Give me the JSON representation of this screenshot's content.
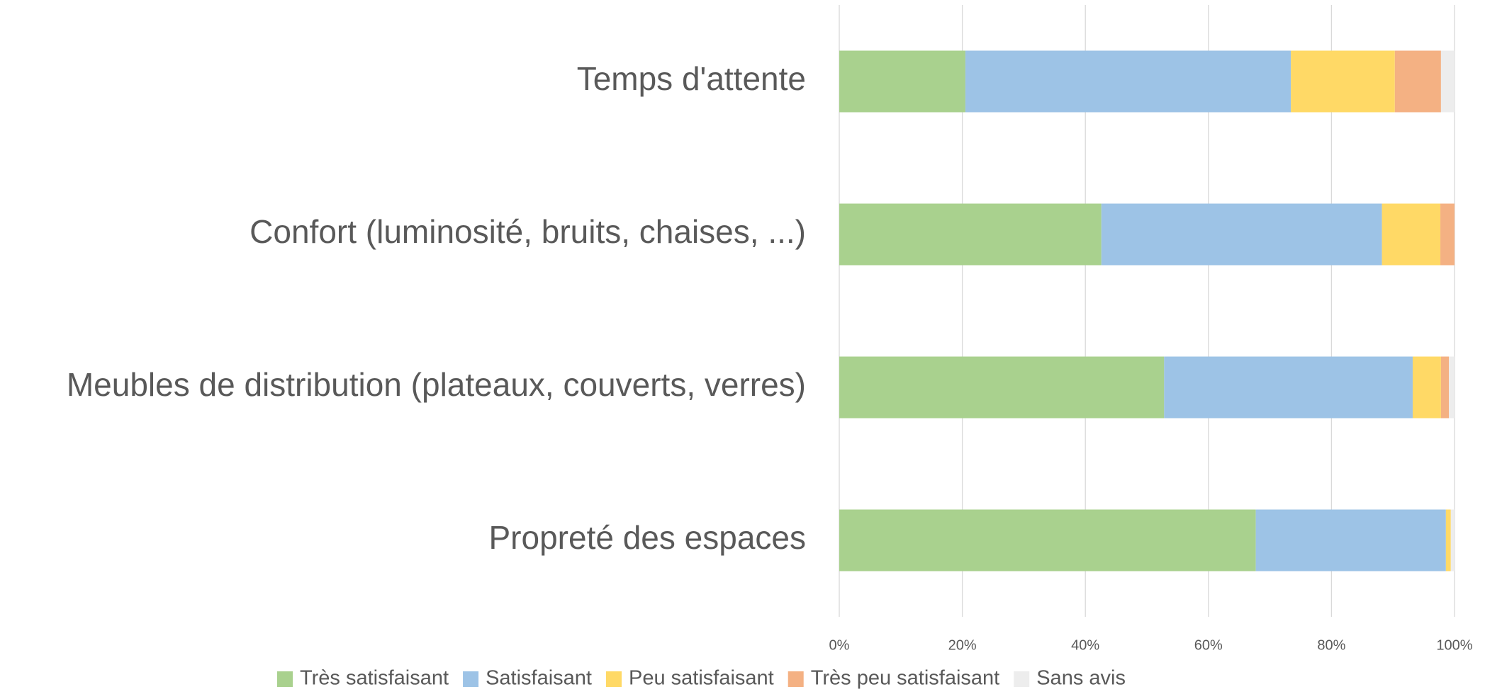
{
  "chart_data": {
    "type": "stacked_barh",
    "categories": [
      "Temps d'attente",
      "Confort (luminosité, bruits, chaises, ...)",
      "Meubles de distribution (plateaux, couverts, verres)",
      "Propreté des espaces"
    ],
    "series": [
      {
        "name": "Très satisfaisant",
        "color": "#a9d18e",
        "values": [
          20.5,
          42.6,
          52.8,
          67.7
        ]
      },
      {
        "name": "Satisfaisant",
        "color": "#9dc3e6",
        "values": [
          52.9,
          45.6,
          40.4,
          30.9
        ]
      },
      {
        "name": "Peu satisfaisant",
        "color": "#ffd966",
        "values": [
          16.9,
          9.5,
          4.6,
          0.8
        ]
      },
      {
        "name": "Très peu satisfaisant",
        "color": "#f4b183",
        "values": [
          7.5,
          2.3,
          1.3,
          0
        ]
      },
      {
        "name": "Sans avis",
        "color": "#ededed",
        "values": [
          2.2,
          0,
          0.9,
          0.6
        ]
      }
    ],
    "xlim": [
      0,
      100
    ],
    "xticks": [
      {
        "value": 0,
        "label": "0%"
      },
      {
        "value": 20,
        "label": "20%"
      },
      {
        "value": 40,
        "label": "40%"
      },
      {
        "value": 60,
        "label": "60%"
      },
      {
        "value": 80,
        "label": "80%"
      },
      {
        "value": 100,
        "label": "100%"
      }
    ],
    "grid": true,
    "legend": "bottom"
  }
}
